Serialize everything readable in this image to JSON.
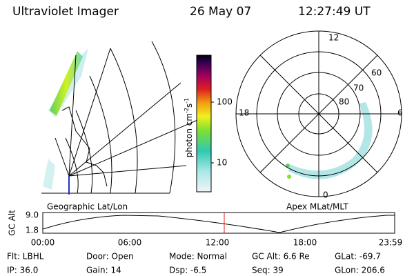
{
  "header": {
    "instrument": "Ultraviolet Imager",
    "date": "26 May 07",
    "time": "12:27:49 UT"
  },
  "colorbar": {
    "ticks": [
      "100",
      "10"
    ],
    "label": {
      "text": "photon cm",
      "exp1": "-2",
      "unit2": "s",
      "exp2": "-1"
    }
  },
  "polar": {
    "mlt_labels": {
      "top": "12",
      "left": "18",
      "right": "6",
      "bottom": "0"
    },
    "lat_labels": [
      "60",
      "70",
      "80"
    ]
  },
  "captions": {
    "left": "Geographic Lat/Lon",
    "right": "Apex MLat/MLT"
  },
  "timeline": {
    "axis_label": "GC Alt",
    "ticks": [
      "9.0",
      "1.8"
    ],
    "times": [
      "00:00",
      "06:00",
      "12:00",
      "18:00",
      "23:59"
    ]
  },
  "footer": [
    [
      "Flt: LBHL",
      "Door: Open",
      "Mode: Normal",
      "GC Alt: 6.6 Re",
      "GLat: -69.7"
    ],
    [
      "IP: 36.0",
      "Gain: 14",
      "Dsp: -6.5",
      "Seq: 39",
      "GLon: 206.6"
    ]
  ]
}
